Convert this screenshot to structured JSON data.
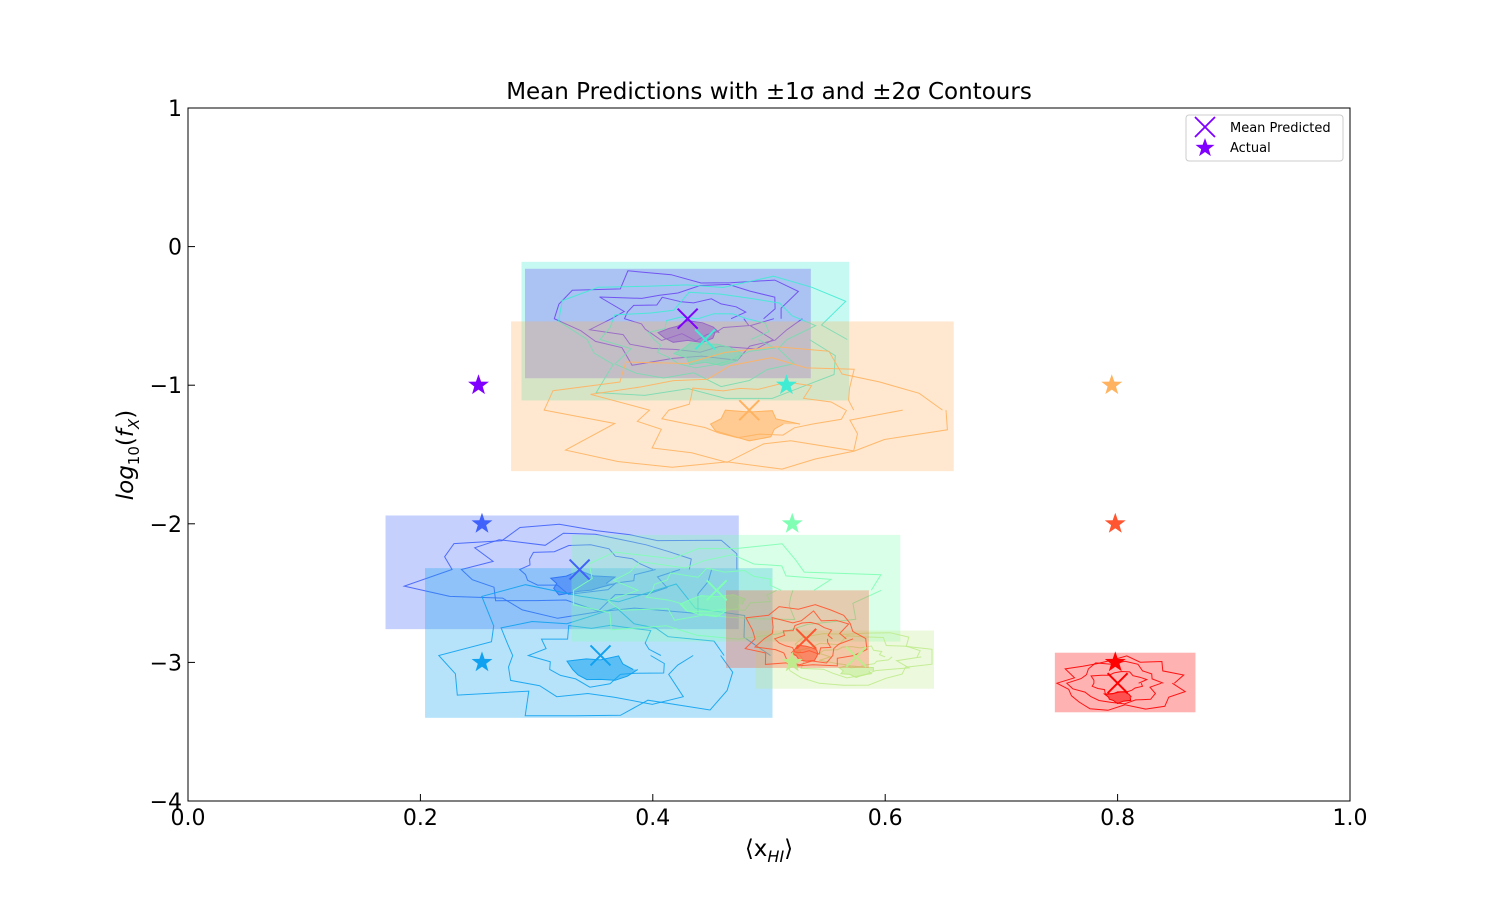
{
  "chart_data": {
    "type": "scatter",
    "title": "Mean Predictions with  ±1σ and ±2σ Contours",
    "xlabel": "⟨x_HI⟩",
    "ylabel": "log10(f_X)",
    "xlim": [
      0.0,
      1.0
    ],
    "ylim": [
      -4,
      1
    ],
    "xticks": [
      0.0,
      0.2,
      0.4,
      0.6,
      0.8,
      1.0
    ],
    "xtick_labels": [
      "0.0",
      "0.2",
      "0.4",
      "0.6",
      "0.8",
      "1.0"
    ],
    "yticks": [
      1,
      0,
      -1,
      -2,
      -3,
      -4
    ],
    "ytick_labels": [
      "1",
      "0",
      "−1",
      "−2",
      "−3",
      "−4"
    ],
    "grid": false,
    "legend_position": "top-right",
    "legend": [
      {
        "label": "Mean Predicted",
        "marker": "x",
        "color": "#8000ff"
      },
      {
        "label": "Actual",
        "marker": "star",
        "color": "#8000ff"
      }
    ],
    "series": [
      {
        "color": "#8000ff",
        "actual": [
          0.25,
          -1.0
        ],
        "predicted": [
          0.43,
          -0.52
        ],
        "x_range": [
          0.29,
          0.536
        ],
        "y_range": [
          -0.95,
          -0.16
        ]
      },
      {
        "color": "#4062fa",
        "actual": [
          0.253,
          -2.0
        ],
        "predicted": [
          0.337,
          -2.33
        ],
        "x_range": [
          0.17,
          0.474
        ],
        "y_range": [
          -2.76,
          -1.94
        ]
      },
      {
        "color": "#10a2f0",
        "actual": [
          0.253,
          -3.0
        ],
        "predicted": [
          0.355,
          -2.95
        ],
        "x_range": [
          0.204,
          0.503
        ],
        "y_range": [
          -3.4,
          -2.32
        ]
      },
      {
        "color": "#40ecd4",
        "actual": [
          0.515,
          -1.0
        ],
        "predicted": [
          0.445,
          -0.67
        ],
        "x_range": [
          0.287,
          0.569
        ],
        "y_range": [
          -1.11,
          -0.11
        ]
      },
      {
        "color": "#80ffb4",
        "actual": [
          0.52,
          -2.0
        ],
        "predicted": [
          0.455,
          -2.48
        ],
        "x_range": [
          0.33,
          0.613
        ],
        "y_range": [
          -2.85,
          -2.08
        ]
      },
      {
        "color": "#c0eb8d",
        "actual": [
          0.52,
          -3.0
        ],
        "predicted": [
          0.575,
          -2.96
        ],
        "x_range": [
          0.488,
          0.642
        ],
        "y_range": [
          -3.19,
          -2.77
        ]
      },
      {
        "color": "#ffb360",
        "actual": [
          0.795,
          -1.0
        ],
        "predicted": [
          0.483,
          -1.18
        ],
        "x_range": [
          0.278,
          0.659
        ],
        "y_range": [
          -1.62,
          -0.54
        ]
      },
      {
        "color": "#ff5530",
        "actual": [
          0.798,
          -2.0
        ],
        "predicted": [
          0.532,
          -2.83
        ],
        "x_range": [
          0.463,
          0.586
        ],
        "y_range": [
          -3.04,
          -2.48
        ]
      },
      {
        "color": "#ff0000",
        "actual": [
          0.798,
          -3.0
        ],
        "predicted": [
          0.8,
          -3.15
        ],
        "x_range": [
          0.746,
          0.867
        ],
        "y_range": [
          -3.36,
          -2.93
        ]
      }
    ]
  }
}
